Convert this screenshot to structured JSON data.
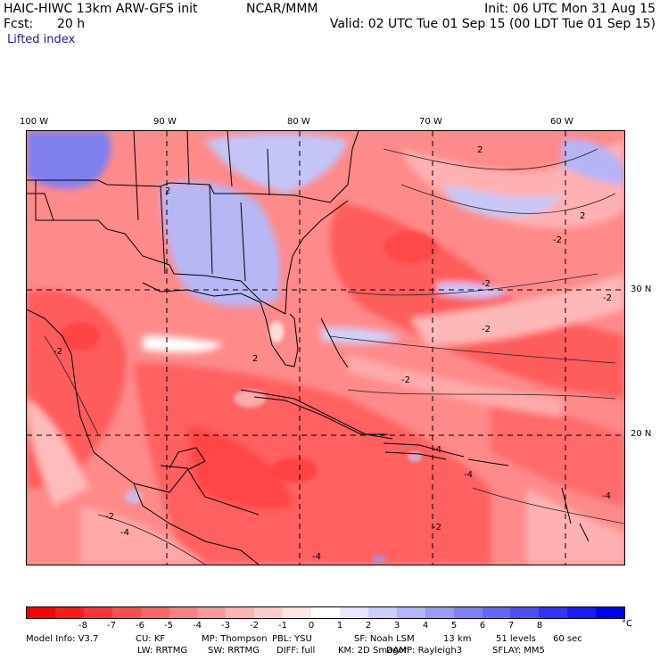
{
  "header": {
    "model": "HAIC-HIWC 13km ARW-GFS init",
    "org": "NCAR/MMM",
    "init": "Init: 06 UTC Mon 31 Aug 15",
    "fcst_label": "Fcst:",
    "fcst_value": "20 h",
    "valid": "Valid: 02 UTC Tue 01 Sep 15 (00 LDT Tue 01 Sep 15)",
    "field": "Lifted index"
  },
  "map": {
    "lon_labels": [
      "100 W",
      "90 W",
      "80 W",
      "70 W",
      "60 W"
    ],
    "lat_labels": [
      "30 N",
      "20 N"
    ],
    "contour_labels": [
      "2",
      "2",
      "2",
      "2",
      "-2",
      "-2",
      "-2",
      "-2",
      "-2",
      "-2",
      "-2",
      "-2",
      "-4",
      "-4",
      "-4",
      "-4",
      "-4"
    ]
  },
  "colorbar": {
    "unit": "°C",
    "labels": [
      "-8",
      "-7",
      "-6",
      "-5",
      "-4",
      "-3",
      "-2",
      "-1",
      "0",
      "1",
      "2",
      "3",
      "4",
      "5",
      "6",
      "7",
      "8"
    ],
    "colors": [
      "#ff0000",
      "#ff1a1a",
      "#ff3333",
      "#ff4d4d",
      "#ff6666",
      "#ff8080",
      "#ff9999",
      "#ffb3b3",
      "#ffcccc",
      "#ffe6e6",
      "#ffffff",
      "#e6e6ff",
      "#ccccff",
      "#b3b3ff",
      "#9999ff",
      "#8080ff",
      "#6666ff",
      "#4d4dff",
      "#3333ff",
      "#1a1aff",
      "#0000ff"
    ]
  },
  "footer": {
    "row1": [
      "Model Info: V3.7",
      "CU: KF",
      "MP: Thompson",
      "PBL: YSU",
      "SF: Noah LSM",
      "13 km",
      "51 levels",
      "60 sec"
    ],
    "row2": [
      "LW: RRTMG",
      "SW: RRTMG",
      "DIFF: full",
      "KM: 2D Smagor",
      "DAMP: Rayleigh3",
      "SFLAY: MM5"
    ]
  }
}
